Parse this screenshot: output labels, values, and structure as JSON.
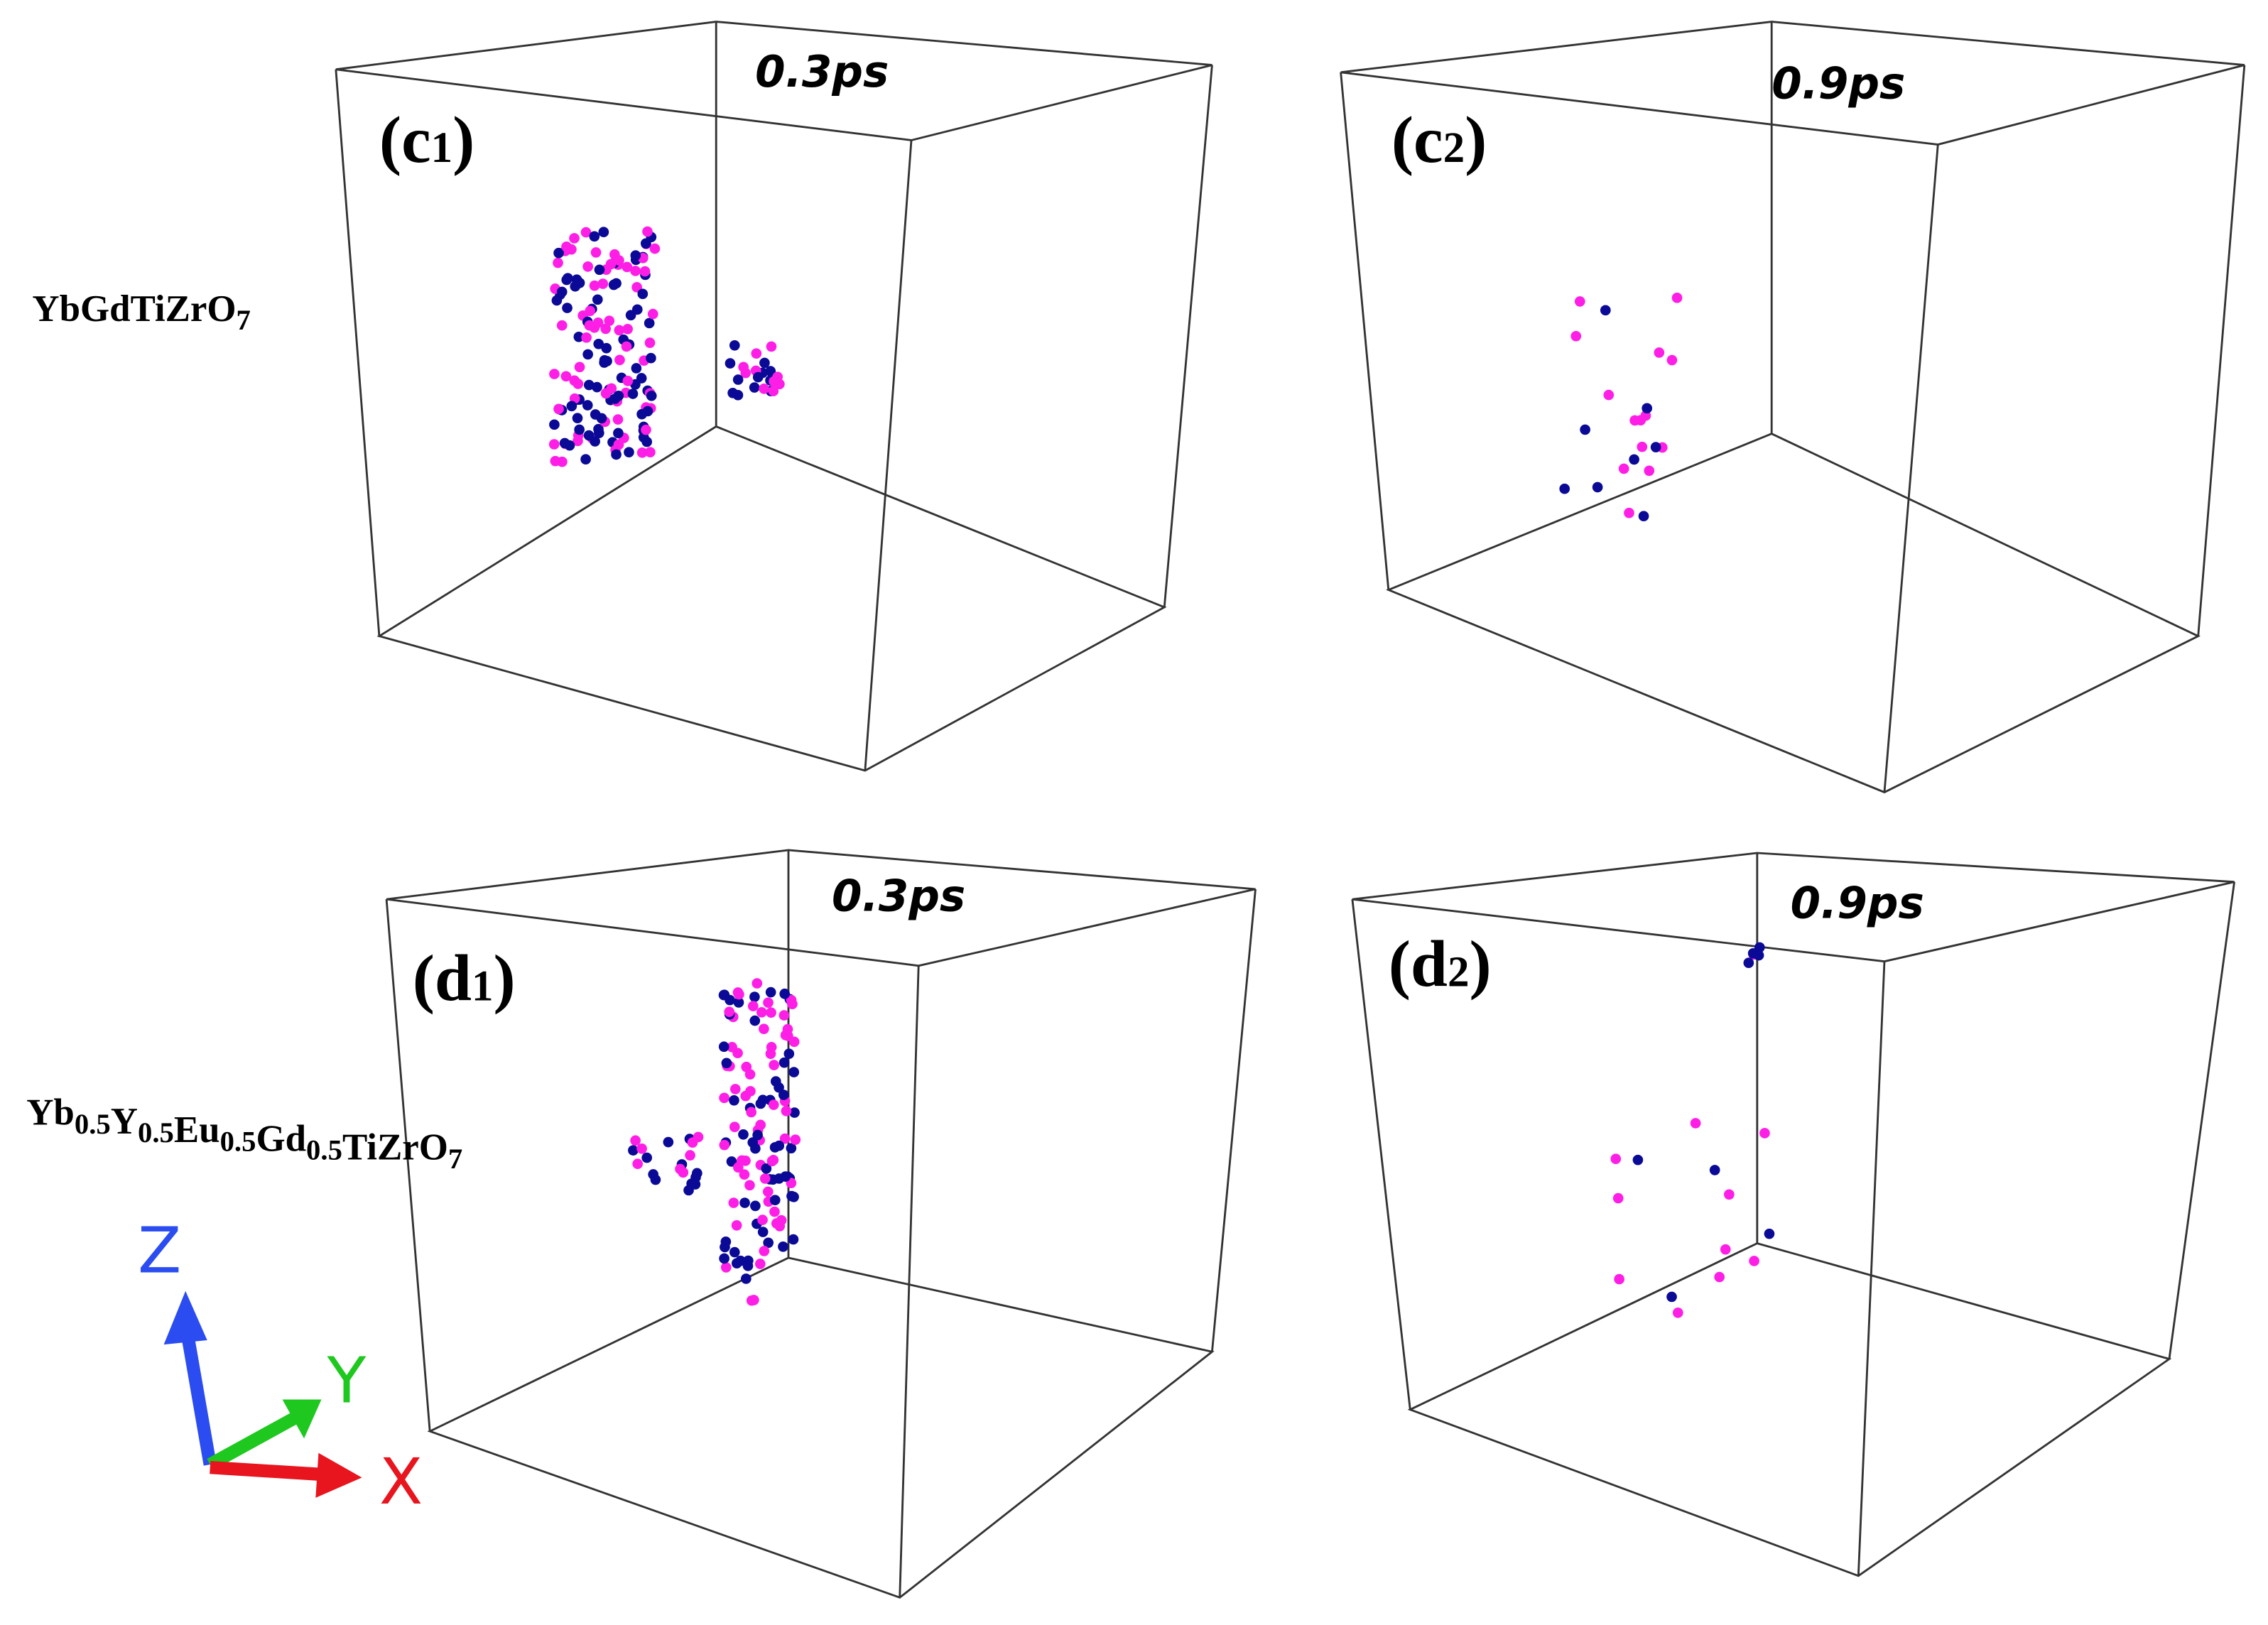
{
  "colors": {
    "atom_a": "#ff1ee6",
    "atom_b": "#0a0a96",
    "edge": "#333333",
    "axis_x": "#e8141e",
    "axis_y": "#1ec81e",
    "axis_z": "#2a4cf0"
  },
  "rows": [
    {
      "formula_parts": [
        {
          "t": "YbGdTiZrO",
          "s": "7"
        }
      ]
    },
    {
      "formula_parts": [
        {
          "t": "Yb",
          "s": "0.5"
        },
        {
          "t": "Y",
          "s": "0.5"
        },
        {
          "t": "Eu",
          "s": "0.5"
        },
        {
          "t": "Gd",
          "s": "0.5"
        },
        {
          "t": "TiZrO",
          "s": "7"
        }
      ]
    }
  ],
  "panels": [
    {
      "letter": "c",
      "index": "1",
      "time": "0.3ps"
    },
    {
      "letter": "c",
      "index": "2",
      "time": "0.9ps"
    },
    {
      "letter": "d",
      "index": "1",
      "time": "0.3ps"
    },
    {
      "letter": "d",
      "index": "2",
      "time": "0.9ps"
    }
  ],
  "axes_triad": {
    "x": "X",
    "y": "Y",
    "z": "Z"
  }
}
